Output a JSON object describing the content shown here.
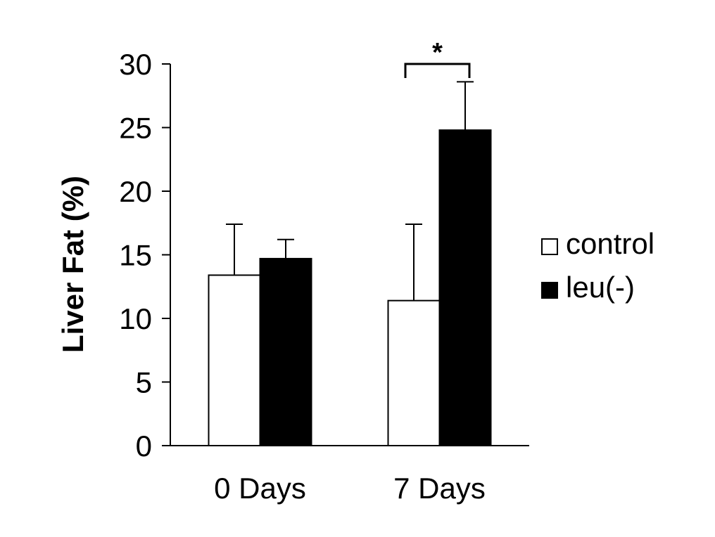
{
  "chart_data": {
    "type": "bar",
    "categories": [
      "0 Days",
      "7 Days"
    ],
    "series": [
      {
        "name": "control",
        "values": [
          13.4,
          11.4
        ],
        "errors": [
          4.0,
          6.0
        ],
        "color": "#ffffff"
      },
      {
        "name": "leu(-)",
        "values": [
          14.7,
          24.8
        ],
        "errors": [
          1.5,
          3.8
        ],
        "color": "#000000"
      }
    ],
    "ylabel": "Liver Fat (%)",
    "xlabel": "",
    "ylim": [
      0,
      30
    ],
    "yticks": [
      0,
      5,
      10,
      15,
      20,
      25,
      30
    ],
    "grid": false,
    "legend_position": "right",
    "annotations": [
      {
        "text": "*",
        "category": "7 Days",
        "type": "significance-bracket"
      }
    ]
  }
}
